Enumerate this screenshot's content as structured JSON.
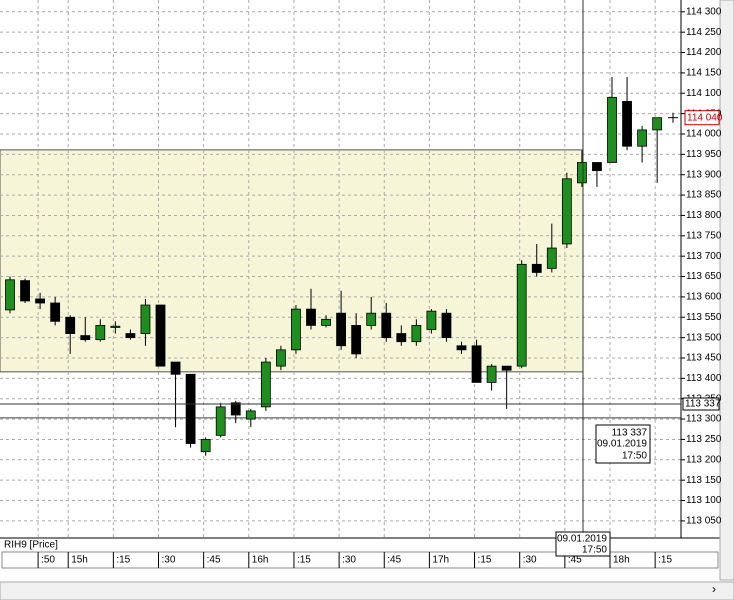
{
  "chart_data": {
    "type": "candlestick",
    "title": "RIH9 [Price]",
    "categories": [
      null,
      null,
      ":50",
      null,
      "15h",
      null,
      null,
      ":15",
      null,
      null,
      ":30",
      null,
      null,
      ":45",
      null,
      null,
      "16h",
      null,
      null,
      ":15",
      null,
      null,
      ":30",
      null,
      null,
      ":45",
      null,
      null,
      "17h",
      null,
      null,
      ":15",
      null,
      null,
      ":30",
      null,
      null,
      ":45",
      null,
      null,
      "18h",
      null,
      null,
      ":15"
    ],
    "open": [
      113568,
      113640,
      113595,
      113585,
      113550,
      113505,
      113495,
      113525,
      113510,
      113510,
      113580,
      113440,
      113410,
      113220,
      113260,
      113340,
      113300,
      113330,
      113430,
      113470,
      113570,
      113530,
      113560,
      113530,
      113530,
      113560,
      113510,
      113490,
      113520,
      113560,
      113480,
      113480,
      113390,
      113430,
      113430,
      113680,
      113670,
      113730,
      113880,
      113930,
      113930,
      114080,
      113970,
      114010
    ],
    "high": [
      113650,
      113645,
      113610,
      113600,
      113555,
      113550,
      113545,
      113540,
      113520,
      113595,
      113580,
      113440,
      113410,
      113255,
      113340,
      113345,
      113325,
      113450,
      113480,
      113580,
      113620,
      113555,
      113615,
      113560,
      113600,
      113585,
      113530,
      113545,
      113570,
      113570,
      113490,
      113495,
      113435,
      113430,
      113690,
      113730,
      113780,
      113905,
      113960,
      113930,
      114140,
      114140,
      114020,
      114040
    ],
    "low": [
      113560,
      113585,
      113570,
      113530,
      113460,
      113490,
      113490,
      113510,
      113495,
      113480,
      113430,
      113280,
      113230,
      113210,
      113255,
      113290,
      113280,
      113320,
      113420,
      113460,
      113520,
      113525,
      113470,
      113450,
      113520,
      113490,
      113480,
      113480,
      113510,
      113490,
      113460,
      113390,
      113370,
      113325,
      113425,
      113650,
      113660,
      113720,
      113870,
      113870,
      113930,
      113960,
      113930,
      113880
    ],
    "close": [
      113642,
      113590,
      113585,
      113540,
      113510,
      113495,
      113530,
      113528,
      113500,
      113580,
      113430,
      113410,
      113240,
      113250,
      113330,
      113310,
      113320,
      113440,
      113470,
      113570,
      113530,
      113545,
      113480,
      113460,
      113560,
      113500,
      113490,
      113530,
      113565,
      113500,
      113470,
      113390,
      113430,
      113420,
      113680,
      113660,
      113720,
      113890,
      113930,
      113910,
      114090,
      113970,
      114010,
      114040
    ],
    "up_color": "#1e8f1e",
    "down_color": "#000000",
    "ylim": [
      113008,
      114329
    ],
    "yticks": [
      {
        "value": 113050,
        "label": "113 050"
      },
      {
        "value": 113100,
        "label": "113 100"
      },
      {
        "value": 113150,
        "label": "113 150"
      },
      {
        "value": 113200,
        "label": "113 200"
      },
      {
        "value": 113250,
        "label": "113 250"
      },
      {
        "value": 113300,
        "label": "113 300"
      },
      {
        "value": 113350,
        "label": "113 350"
      },
      {
        "value": 113400,
        "label": "113 400"
      },
      {
        "value": 113450,
        "label": "113 450"
      },
      {
        "value": 113500,
        "label": "113 500"
      },
      {
        "value": 113550,
        "label": "113 550"
      },
      {
        "value": 113600,
        "label": "113 600"
      },
      {
        "value": 113650,
        "label": "113 650"
      },
      {
        "value": 113700,
        "label": "113 700"
      },
      {
        "value": 113750,
        "label": "113 750"
      },
      {
        "value": 113800,
        "label": "113 800"
      },
      {
        "value": 113850,
        "label": "113 850"
      },
      {
        "value": 113900,
        "label": "113 900"
      },
      {
        "value": 113950,
        "label": "113 950"
      },
      {
        "value": 114000,
        "label": "114 000"
      },
      {
        "value": 114050,
        "label": "114 050"
      },
      {
        "value": 114100,
        "label": "114 100"
      },
      {
        "value": 114150,
        "label": "114 150"
      },
      {
        "value": 114200,
        "label": "114 200"
      },
      {
        "value": 114250,
        "label": "114 250"
      },
      {
        "value": 114300,
        "label": "114 300"
      }
    ],
    "grid": true,
    "zone": [
      113416,
      113961
    ],
    "level": 113303,
    "last_price": {
      "value": 114040,
      "label": "114 040"
    },
    "crosshair": {
      "value": 113337,
      "label": "113 337",
      "date": "09.01.2019",
      "time": "17:50"
    }
  }
}
